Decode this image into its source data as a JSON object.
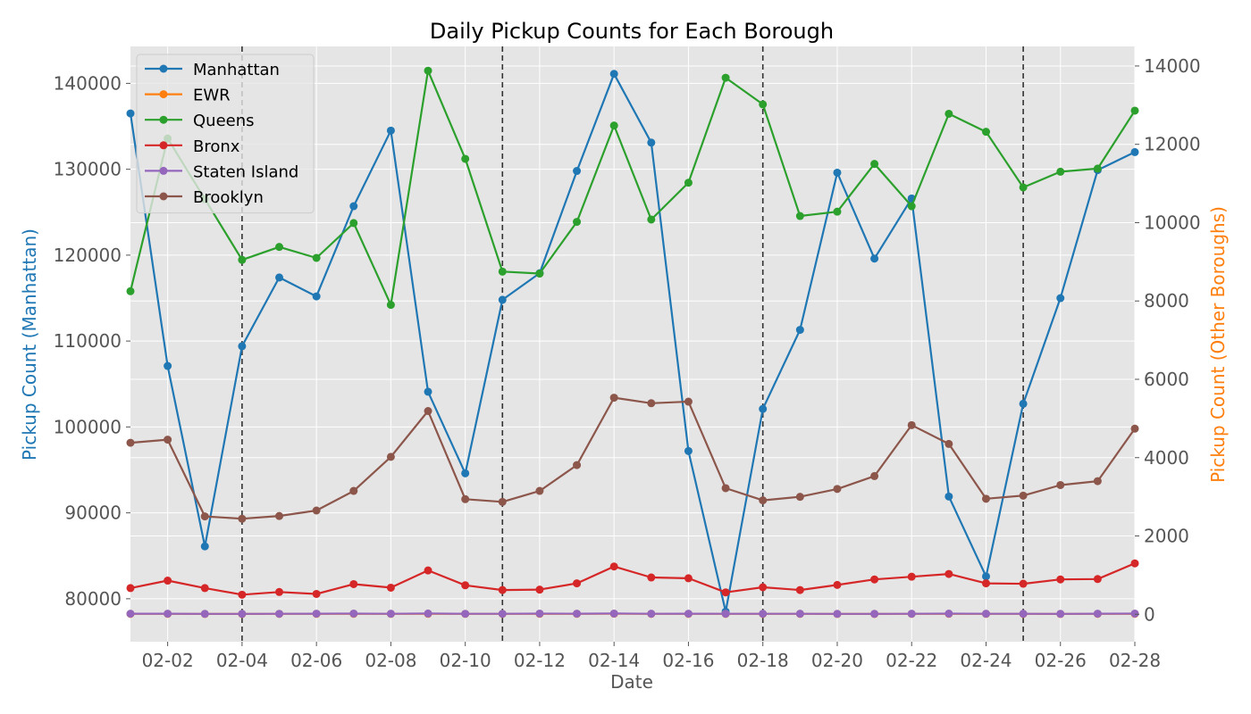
{
  "chart_data": {
    "type": "line",
    "title": "Daily Pickup Counts for Each Borough",
    "xlabel": "Date",
    "ylabel_left": "Pickup Count (Manhattan)",
    "ylabel_right": "Pickup Count (Other Boroughs)",
    "x": [
      "02-01",
      "02-02",
      "02-03",
      "02-04",
      "02-05",
      "02-06",
      "02-07",
      "02-08",
      "02-09",
      "02-10",
      "02-11",
      "02-12",
      "02-13",
      "02-14",
      "02-15",
      "02-16",
      "02-17",
      "02-18",
      "02-19",
      "02-20",
      "02-21",
      "02-22",
      "02-23",
      "02-24",
      "02-25",
      "02-26",
      "02-27",
      "02-28"
    ],
    "x_tick_labels": [
      "02-02",
      "02-04",
      "02-06",
      "02-08",
      "02-10",
      "02-12",
      "02-14",
      "02-16",
      "02-18",
      "02-20",
      "02-22",
      "02-24",
      "02-26",
      "02-28"
    ],
    "x_tick_index": [
      1,
      3,
      5,
      7,
      9,
      11,
      13,
      15,
      17,
      19,
      21,
      23,
      25,
      27
    ],
    "vlines_index": [
      3,
      10,
      17,
      24
    ],
    "ylim_left": [
      75000,
      144300
    ],
    "ylim_right": [
      -700,
      14500
    ],
    "yticks_left": [
      80000,
      90000,
      100000,
      110000,
      120000,
      130000,
      140000
    ],
    "yticks_right": [
      0,
      2000,
      4000,
      6000,
      8000,
      10000,
      12000,
      14000
    ],
    "grid": true,
    "legend_position": "top-left",
    "colors": {
      "background": "#E5E5E5",
      "grid": "#FFFFFF",
      "left_axis": "#1f77b4",
      "right_axis": "#ff7f0e",
      "vline": "#333333"
    },
    "series": [
      {
        "name": "Manhattan",
        "axis": "left",
        "color": "#1f77b4",
        "values": [
          136500,
          107100,
          86100,
          109400,
          117400,
          115200,
          125700,
          134500,
          104100,
          94600,
          114800,
          117900,
          129800,
          141100,
          133100,
          97200,
          78500,
          102100,
          111300,
          129600,
          119600,
          126600,
          91900,
          82600,
          102700,
          115000,
          129900,
          132000
        ]
      },
      {
        "name": "EWR",
        "axis": "right",
        "color": "#ff7f0e",
        "values": [
          10,
          10,
          8,
          8,
          10,
          10,
          12,
          10,
          12,
          10,
          10,
          12,
          12,
          14,
          10,
          10,
          10,
          10,
          10,
          8,
          8,
          10,
          12,
          10,
          10,
          8,
          10,
          12
        ]
      },
      {
        "name": "Queens",
        "axis": "right",
        "color": "#2ca02c",
        "values": [
          8250,
          12150,
          10600,
          9050,
          9380,
          9100,
          9990,
          7900,
          13880,
          11630,
          8750,
          8700,
          10020,
          12480,
          10080,
          11020,
          13700,
          13020,
          10170,
          10280,
          11500,
          10420,
          12780,
          12320,
          10900,
          11300,
          11380,
          12860
        ]
      },
      {
        "name": "Bronx",
        "axis": "right",
        "color": "#d62728",
        "values": [
          670,
          860,
          670,
          500,
          570,
          520,
          770,
          680,
          1120,
          740,
          620,
          630,
          790,
          1220,
          940,
          920,
          560,
          690,
          620,
          750,
          890,
          960,
          1030,
          790,
          780,
          890,
          900,
          1300
        ]
      },
      {
        "name": "Staten Island",
        "axis": "right",
        "color": "#9467bd",
        "values": [
          15,
          15,
          12,
          12,
          13,
          16,
          18,
          14,
          20,
          13,
          13,
          18,
          16,
          19,
          14,
          15,
          14,
          14,
          14,
          12,
          12,
          14,
          17,
          14,
          14,
          12,
          16,
          18
        ]
      },
      {
        "name": "Brooklyn",
        "axis": "right",
        "color": "#8c564b",
        "values": [
          4380,
          4460,
          2500,
          2440,
          2510,
          2650,
          3150,
          4020,
          5190,
          2940,
          2870,
          3150,
          3810,
          5530,
          5390,
          5430,
          3220,
          2910,
          3000,
          3200,
          3530,
          4830,
          4350,
          2950,
          3030,
          3300,
          3400,
          4740
        ]
      }
    ]
  }
}
